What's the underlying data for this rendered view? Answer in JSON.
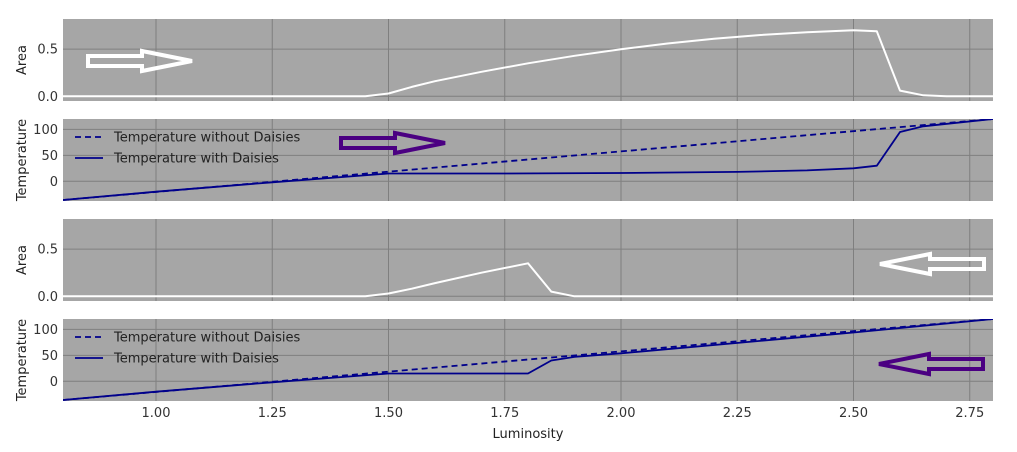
{
  "chart_data": {
    "type": "line",
    "shared_x_axis": {
      "label": "Luminosity",
      "xlim": [
        0.8,
        2.8
      ],
      "ticks": [
        1.0,
        1.25,
        1.5,
        1.75,
        2.0,
        2.25,
        2.5,
        2.75
      ],
      "tick_labels": [
        "1.00",
        "1.25",
        "1.50",
        "1.75",
        "2.00",
        "2.25",
        "2.50",
        "2.75"
      ]
    },
    "colors": {
      "panel_background": "#a6a6a6",
      "grid": "#7f7f7f",
      "area_line": "#ffffff",
      "temperature_line": "#00008b",
      "arrow_white": "#ffffff",
      "arrow_purple": "#4b0082"
    },
    "panels": [
      {
        "id": "area-increasing",
        "ylabel": "Area",
        "ylim": [
          -0.05,
          0.82
        ],
        "yticks": [
          0.0,
          0.5
        ],
        "ytick_labels": [
          "0.0",
          "0.5"
        ],
        "arrow": {
          "direction": "right",
          "color": "white",
          "label": ""
        },
        "series": [
          {
            "name": "",
            "style": "solid",
            "color_key": "area_line",
            "x": [
              0.8,
              1.0,
              1.25,
              1.45,
              1.5,
              1.55,
              1.6,
              1.7,
              1.8,
              1.9,
              2.0,
              2.1,
              2.2,
              2.3,
              2.4,
              2.5,
              2.55,
              2.6,
              2.65,
              2.7,
              2.8
            ],
            "y": [
              0.0,
              0.0,
              0.0,
              0.0,
              0.03,
              0.1,
              0.16,
              0.26,
              0.35,
              0.43,
              0.5,
              0.56,
              0.61,
              0.65,
              0.68,
              0.7,
              0.69,
              0.06,
              0.01,
              0.0,
              0.0
            ]
          }
        ]
      },
      {
        "id": "temperature-increasing",
        "ylabel": "Temperature",
        "ylim": [
          -38,
          120
        ],
        "yticks": [
          0,
          50,
          100
        ],
        "ytick_labels": [
          "0",
          "50",
          "100"
        ],
        "legend": {
          "position": "upper-left",
          "entries": [
            {
              "label": "Temperature without Daisies",
              "style": "dashed"
            },
            {
              "label": "Temperature with Daisies",
              "style": "solid"
            }
          ]
        },
        "arrow": {
          "direction": "right",
          "color": "purple",
          "label": ""
        },
        "series": [
          {
            "name": "Temperature without Daisies",
            "style": "dashed",
            "color_key": "temperature_line",
            "x": [
              0.8,
              2.8
            ],
            "y": [
              -36,
              120
            ]
          },
          {
            "name": "Temperature with Daisies",
            "style": "solid",
            "color_key": "temperature_line",
            "x": [
              0.8,
              1.0,
              1.25,
              1.5,
              1.75,
              2.0,
              2.25,
              2.4,
              2.5,
              2.55,
              2.6,
              2.65,
              2.8
            ],
            "y": [
              -36,
              -20,
              -2,
              15,
              15,
              16,
              18,
              21,
              25,
              30,
              95,
              106,
              120
            ]
          }
        ]
      },
      {
        "id": "area-decreasing",
        "ylabel": "Area",
        "ylim": [
          -0.05,
          0.82
        ],
        "yticks": [
          0.0,
          0.5
        ],
        "ytick_labels": [
          "0.0",
          "0.5"
        ],
        "arrow": {
          "direction": "left",
          "color": "white",
          "label": ""
        },
        "series": [
          {
            "name": "",
            "style": "solid",
            "color_key": "area_line",
            "x": [
              0.8,
              1.0,
              1.25,
              1.45,
              1.5,
              1.55,
              1.6,
              1.7,
              1.8,
              1.85,
              1.9,
              2.0,
              2.5,
              2.8
            ],
            "y": [
              0.0,
              0.0,
              0.0,
              0.0,
              0.03,
              0.08,
              0.14,
              0.25,
              0.35,
              0.05,
              0.0,
              0.0,
              0.0,
              0.0
            ]
          }
        ]
      },
      {
        "id": "temperature-decreasing",
        "ylabel": "Temperature",
        "ylim": [
          -38,
          120
        ],
        "yticks": [
          0,
          50,
          100
        ],
        "ytick_labels": [
          "0",
          "50",
          "100"
        ],
        "legend": {
          "position": "upper-left",
          "entries": [
            {
              "label": "Temperature without Daisies",
              "style": "dashed"
            },
            {
              "label": "Temperature with Daisies",
              "style": "solid"
            }
          ]
        },
        "arrow": {
          "direction": "left",
          "color": "purple",
          "label": ""
        },
        "series": [
          {
            "name": "Temperature without Daisies",
            "style": "dashed",
            "color_key": "temperature_line",
            "x": [
              0.8,
              2.8
            ],
            "y": [
              -36,
              120
            ]
          },
          {
            "name": "Temperature with Daisies",
            "style": "solid",
            "color_key": "temperature_line",
            "x": [
              0.8,
              1.0,
              1.25,
              1.5,
              1.75,
              1.8,
              1.85,
              1.9,
              2.0,
              2.5,
              2.8
            ],
            "y": [
              -36,
              -20,
              -2,
              15,
              15,
              15,
              40,
              47,
              54,
              94,
              120
            ]
          }
        ]
      }
    ]
  }
}
